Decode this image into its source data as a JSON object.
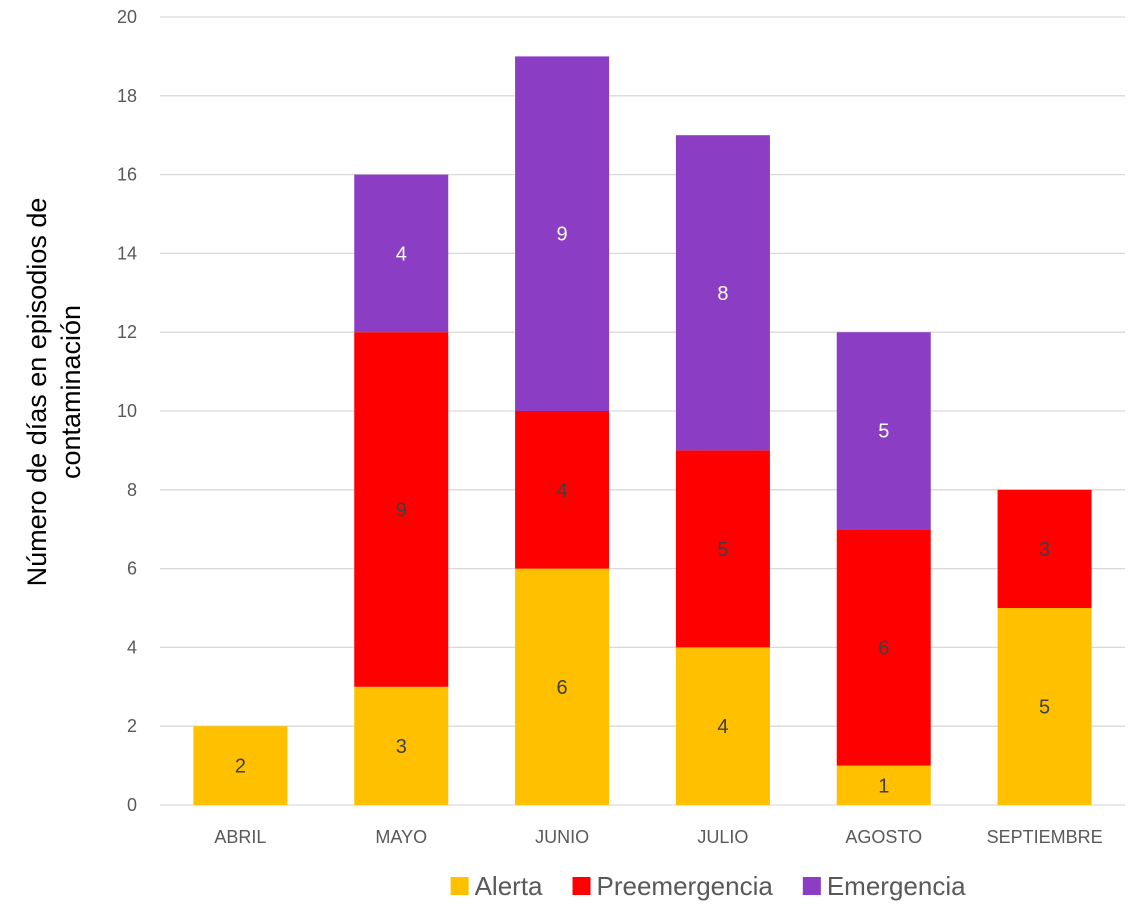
{
  "chart_data": {
    "type": "bar",
    "stacked": true,
    "title": "",
    "xlabel": "",
    "ylabel_lines": [
      "Número de días en episodios de",
      "contaminación"
    ],
    "ylim": [
      0,
      20
    ],
    "ytick_step": 2,
    "grid": true,
    "legend_position": "bottom",
    "categories": [
      "ABRIL",
      "MAYO",
      "JUNIO",
      "JULIO",
      "AGOSTO",
      "SEPTIEMBRE"
    ],
    "series": [
      {
        "name": "Alerta",
        "color": "#FFC000",
        "label_color": "#404040",
        "values": [
          2,
          3,
          6,
          4,
          1,
          5
        ]
      },
      {
        "name": "Preemergencia",
        "color": "#FF0000",
        "label_color": "#404040",
        "values": [
          0,
          9,
          4,
          5,
          6,
          3
        ]
      },
      {
        "name": "Emergencia",
        "color": "#8B3DC3",
        "label_color": "#FFFFFF",
        "values": [
          0,
          4,
          9,
          8,
          5,
          0
        ]
      }
    ],
    "grid_color": "#D9D9D9"
  }
}
